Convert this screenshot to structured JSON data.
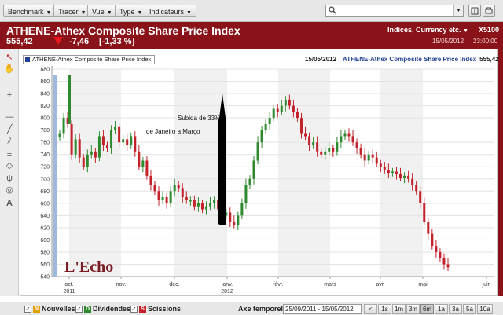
{
  "toolbar": {
    "menus": [
      "Benchmark",
      "Tracer",
      "Vue",
      "Type",
      "Indicateurs"
    ],
    "search_placeholder": ""
  },
  "header": {
    "title": "ATHENE-Athex Composite Share Price Index",
    "price": "555,42",
    "change": "-7,46",
    "change_pct": "[-1,33 %]",
    "category": "Indices, Currency etc.",
    "symbol": "X5100",
    "date": "15/05/2012",
    "time": "23:00:00",
    "colors": {
      "bar": "#8a1219",
      "down": "#e8161e"
    }
  },
  "legend": {
    "label": "ATHENE-Athex Composite Share Price Index",
    "info_date": "15/05/2012",
    "info_name": "ATHENE-Athex Composite Share Price Index",
    "info_value": "555,42"
  },
  "logo": {
    "text": "L'Echo"
  },
  "chart_data": {
    "type": "candlestick",
    "y_ticks": [
      540,
      560,
      580,
      600,
      620,
      640,
      660,
      680,
      700,
      720,
      740,
      760,
      780,
      800,
      820,
      840,
      860,
      880
    ],
    "ylim": [
      540,
      880
    ],
    "x_ticks": [
      {
        "label": "oct.",
        "sub": "2011"
      },
      {
        "label": "nov.",
        "sub": ""
      },
      {
        "label": "déc.",
        "sub": ""
      },
      {
        "label": "janv.",
        "sub": "2012"
      },
      {
        "label": "févr.",
        "sub": ""
      },
      {
        "label": "mars",
        "sub": ""
      },
      {
        "label": "avr.",
        "sub": ""
      },
      {
        "label": "mai",
        "sub": ""
      },
      {
        "label": "juin",
        "sub": ""
      }
    ],
    "close_series": [
      775,
      800,
      790,
      740,
      765,
      735,
      720,
      740,
      745,
      735,
      770,
      755,
      750,
      780,
      785,
      760,
      765,
      755,
      770,
      745,
      720,
      730,
      705,
      690,
      680,
      665,
      670,
      660,
      680,
      690,
      685,
      670,
      665,
      665,
      655,
      660,
      650,
      655,
      660,
      665,
      650,
      640,
      645,
      630,
      625,
      640,
      660,
      690,
      700,
      730,
      760,
      780,
      790,
      800,
      815,
      810,
      820,
      830,
      820,
      810,
      800,
      775,
      770,
      755,
      760,
      745,
      740,
      745,
      750,
      745,
      760,
      770,
      775,
      770,
      760,
      750,
      740,
      730,
      740,
      735,
      725,
      720,
      715,
      710,
      712,
      708,
      702,
      705,
      700,
      690,
      680,
      660,
      630,
      610,
      590,
      580,
      570,
      560,
      555
    ],
    "colors": {
      "up": "#2f8a2f",
      "down": "#c3222a"
    },
    "annotations": [
      {
        "text": "Subida de 33%",
        "line": 1
      },
      {
        "text": "de Janeiro a Março",
        "line": 2
      }
    ]
  },
  "bottom": {
    "checks": [
      {
        "label": "Nouvelles",
        "badge": "N",
        "badge_color": "#e0a000",
        "checked": true
      },
      {
        "label": "Dividendes",
        "badge": "D",
        "badge_color": "#2f8a2f",
        "checked": true
      },
      {
        "label": "Scissions",
        "badge": "S",
        "badge_color": "#c3222a",
        "checked": true
      }
    ],
    "axis_label": "Axe temporel:",
    "range_value": "25/09/2011 - 15/05/2012",
    "range_buttons": [
      "1s",
      "1m",
      "3m",
      "6m",
      "1a",
      "3a",
      "5a",
      "10a"
    ],
    "active_range": "6m"
  }
}
